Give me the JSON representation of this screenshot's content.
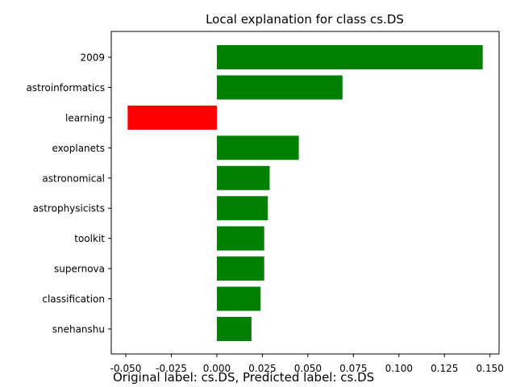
{
  "chart_data": {
    "type": "bar",
    "orientation": "horizontal",
    "title": "Local explanation for class cs.DS",
    "xlabel": "",
    "ylabel": "",
    "categories": [
      "2009",
      "astroinformatics",
      "learning",
      "exoplanets",
      "astronomical",
      "astrophysicists",
      "toolkit",
      "supernova",
      "classification",
      "snehanshu"
    ],
    "values": [
      0.146,
      0.069,
      -0.049,
      0.045,
      0.029,
      0.028,
      0.026,
      0.026,
      0.024,
      0.019
    ],
    "xlim": [
      -0.058,
      0.155
    ],
    "xticks": [
      "-0.050",
      "-0.025",
      "0.000",
      "0.025",
      "0.050",
      "0.075",
      "0.100",
      "0.125",
      "0.150"
    ],
    "positive_color": "#008000",
    "negative_color": "#ff0000",
    "grid": false,
    "legend": "none"
  },
  "caption": "Original label: cs.DS, Predicted label: cs.DS"
}
